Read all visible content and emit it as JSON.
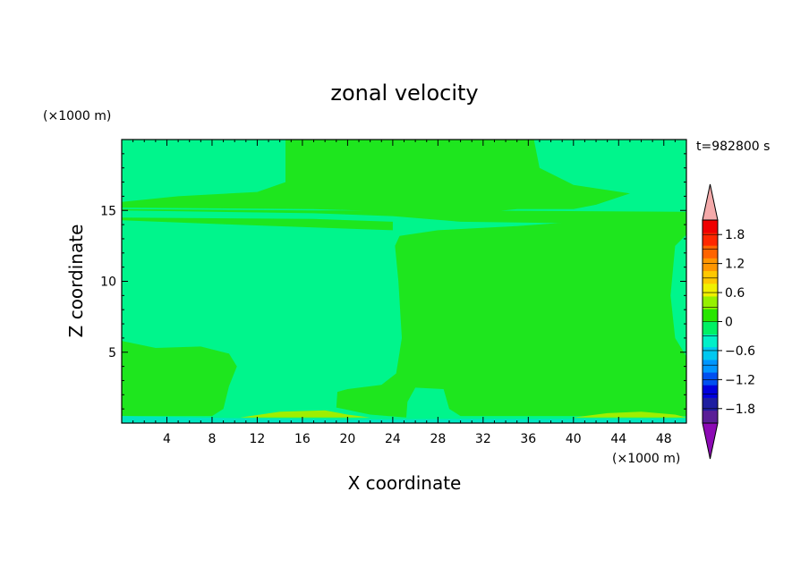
{
  "chart_data": {
    "type": "heatmap",
    "title": "zonal velocity",
    "xlabel": "X coordinate",
    "ylabel": "Z coordinate",
    "x_unit": "(×1000 m)",
    "y_unit": "(×1000 m)",
    "time_label": "t=982800 s",
    "xlim": [
      0,
      50
    ],
    "ylim": [
      0,
      20
    ],
    "x_ticks": [
      4,
      8,
      12,
      16,
      20,
      24,
      28,
      32,
      36,
      40,
      44,
      48
    ],
    "y_ticks": [
      5,
      10,
      15
    ],
    "colorbar": {
      "tick_values": [
        1.8,
        1.2,
        0.6,
        0,
        -0.6,
        -1.2,
        -1.8
      ],
      "tick_labels": [
        "1.8",
        "1.2",
        "0.6",
        "0",
        "−0.6",
        "−1.2",
        "−1.8"
      ],
      "levels": [
        -2.1,
        -1.8,
        -1.5,
        -1.2,
        -0.9,
        -0.6,
        -0.3,
        0,
        0.3,
        0.6,
        0.9,
        1.2,
        1.5,
        1.8,
        2.1
      ],
      "colors": [
        "#5a1e96",
        "#1e1ea0",
        "#0000dc",
        "#0050f0",
        "#0096ff",
        "#00c8f0",
        "#00f0c8",
        "#00f064",
        "#28e600",
        "#96f000",
        "#f0f000",
        "#ffc800",
        "#ff9600",
        "#ff6400",
        "#ff2800",
        "#f00000"
      ],
      "under_color": "#8c0ab4",
      "over_color": "#f4aaaa"
    },
    "background_class": {
      "range": [
        -0.3,
        0
      ],
      "color": "#00f58c"
    },
    "regions": [
      {
        "name": "upper-left-positive",
        "range": [
          0,
          0.3
        ],
        "color": "#1ee61e",
        "poly": [
          [
            14.5,
            20
          ],
          [
            14.5,
            17
          ],
          [
            12,
            16.3
          ],
          [
            5,
            16
          ],
          [
            0,
            15.6
          ],
          [
            0,
            15.2
          ],
          [
            17,
            15.1
          ],
          [
            21,
            15.0
          ],
          [
            24,
            14.9
          ],
          [
            30,
            14.7
          ],
          [
            35,
            15.1
          ],
          [
            40,
            15.1
          ],
          [
            42,
            15.4
          ],
          [
            45,
            16.2
          ],
          [
            40,
            16.8
          ],
          [
            37,
            18
          ],
          [
            36.5,
            20
          ]
        ]
      },
      {
        "name": "band-15",
        "range": [
          0,
          0.3
        ],
        "color": "#1ee61e",
        "poly": [
          [
            0,
            15.0
          ],
          [
            17,
            14.8
          ],
          [
            24,
            14.6
          ],
          [
            30,
            14.2
          ],
          [
            50,
            14.0
          ],
          [
            50,
            14.9
          ],
          [
            30,
            15.0
          ],
          [
            17,
            15.0
          ],
          [
            0,
            15.1
          ]
        ]
      },
      {
        "name": "band-14",
        "range": [
          0,
          0.3
        ],
        "color": "#1ee61e",
        "poly": [
          [
            0,
            14.3
          ],
          [
            10,
            14.0
          ],
          [
            24,
            13.6
          ],
          [
            24,
            14.2
          ],
          [
            17,
            14.4
          ],
          [
            0,
            14.5
          ]
        ]
      },
      {
        "name": "right-positive-block",
        "range": [
          0,
          0.3
        ],
        "color": "#1ee61e",
        "poly": [
          [
            24.6,
            13.2
          ],
          [
            28,
            13.6
          ],
          [
            35,
            13.9
          ],
          [
            42,
            14.3
          ],
          [
            48,
            14.6
          ],
          [
            50,
            14.7
          ],
          [
            50,
            13.3
          ],
          [
            49,
            12.5
          ],
          [
            48.6,
            9
          ],
          [
            49,
            6
          ],
          [
            50,
            4.7
          ],
          [
            50,
            0.5
          ],
          [
            44,
            0.6
          ],
          [
            40,
            1.1
          ],
          [
            39.5,
            2.4
          ],
          [
            38.5,
            3.8
          ],
          [
            40,
            4.1
          ],
          [
            46,
            4.1
          ],
          [
            47.6,
            3.6
          ],
          [
            49,
            3.0
          ],
          [
            50,
            3.0
          ],
          [
            50,
            0.5
          ],
          [
            30,
            0.5
          ],
          [
            29,
            1.0
          ],
          [
            28.5,
            2.4
          ],
          [
            26,
            2.5
          ],
          [
            25.3,
            1.5
          ],
          [
            25.2,
            0.4
          ],
          [
            22,
            0.6
          ],
          [
            19,
            1.1
          ],
          [
            19.1,
            2.2
          ],
          [
            20,
            2.4
          ],
          [
            23,
            2.7
          ],
          [
            24.3,
            3.5
          ],
          [
            24.8,
            6
          ],
          [
            24.5,
            10
          ],
          [
            24.2,
            12.5
          ]
        ]
      },
      {
        "name": "lower-left-positive",
        "range": [
          0,
          0.3
        ],
        "color": "#1ee61e",
        "poly": [
          [
            0,
            5.8
          ],
          [
            3,
            5.3
          ],
          [
            7,
            5.4
          ],
          [
            9.5,
            4.9
          ],
          [
            10.2,
            4.0
          ],
          [
            9.5,
            2.6
          ],
          [
            9,
            1.0
          ],
          [
            8,
            0.5
          ],
          [
            0,
            0.5
          ]
        ]
      },
      {
        "name": "bottom-yellow-left",
        "range": [
          0.3,
          0.9
        ],
        "color": "#a0ee00",
        "poly": [
          [
            10.5,
            0.4
          ],
          [
            14,
            0.8
          ],
          [
            18,
            0.9
          ],
          [
            20,
            0.6
          ],
          [
            22,
            0.4
          ]
        ]
      },
      {
        "name": "bottom-yellow-right",
        "range": [
          0.3,
          0.9
        ],
        "color": "#a0ee00",
        "poly": [
          [
            40,
            0.4
          ],
          [
            43,
            0.7
          ],
          [
            46,
            0.8
          ],
          [
            49,
            0.6
          ],
          [
            50,
            0.4
          ]
        ]
      },
      {
        "name": "bottom-cyan-strip",
        "range": [
          -0.6,
          -0.3
        ],
        "color": "#00e6c0",
        "poly": [
          [
            0,
            0
          ],
          [
            50,
            0
          ],
          [
            50,
            0.3
          ],
          [
            30,
            0.3
          ],
          [
            20,
            0.25
          ],
          [
            10,
            0.35
          ],
          [
            0,
            0.5
          ]
        ]
      }
    ]
  }
}
